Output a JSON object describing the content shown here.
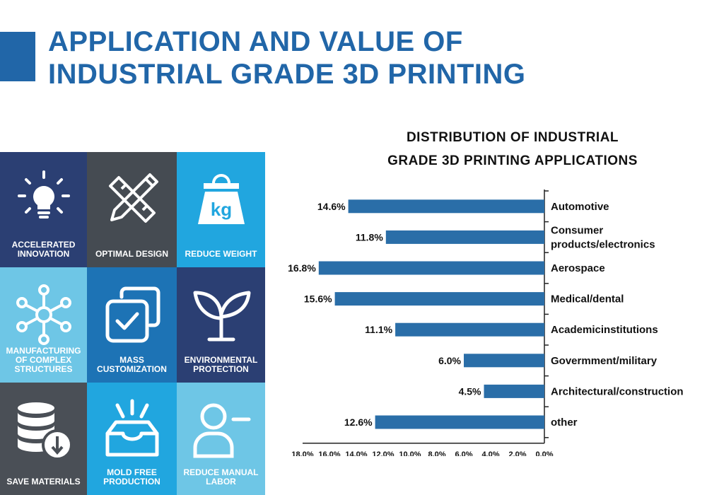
{
  "header": {
    "title_line1": "APPLICATION AND VALUE OF",
    "title_line2": "INDUSTRIAL GRADE 3D PRINTING"
  },
  "tiles": [
    {
      "label": "ACCELERATED INNOVATION",
      "icon": "lightbulb-icon",
      "bg": "#2b3f73"
    },
    {
      "label": "OPTIMAL DESIGN",
      "icon": "pencil-ruler-icon",
      "bg": "#454b52"
    },
    {
      "label": "REDUCE WEIGHT",
      "icon": "weight-kg-icon",
      "bg": "#21a6df"
    },
    {
      "label": "MANUFACTURING OF COMPLEX STRUCTURES",
      "icon": "network-nodes-icon",
      "bg": "#6ec6e6"
    },
    {
      "label": "MASS CUSTOMIZATION",
      "icon": "stacked-checkbox-icon",
      "bg": "#1d73b5"
    },
    {
      "label": "ENVIRONMENTAL PROTECTION",
      "icon": "sprout-icon",
      "bg": "#2b3f73"
    },
    {
      "label": "SAVE MATERIALS",
      "icon": "database-download-icon",
      "bg": "#4a4f56"
    },
    {
      "label": "MOLD FREE PRODUCTION",
      "icon": "inbox-tray-icon",
      "bg": "#21a6df"
    },
    {
      "label": "REDUCE MANUAL LABOR",
      "icon": "person-minus-icon",
      "bg": "#6ec6e6"
    }
  ],
  "chart_data": {
    "type": "bar",
    "orientation": "horizontal",
    "title_line1": "DISTRIBUTION OF INDUSTRIAL",
    "title_line2": "GRADE 3D PRINTING APPLICATIONS",
    "categories": [
      "Automotive",
      "Consumer products/electronics",
      "Aerospace",
      "Medical/dental",
      "Academicinstitutions",
      "Govermment/military",
      "Architectural/construction",
      "other"
    ],
    "category_lines": [
      [
        "Automotive"
      ],
      [
        "Consumer",
        "products/electronics"
      ],
      [
        "Aerospace"
      ],
      [
        "Medical/dental"
      ],
      [
        "Academicinstitutions"
      ],
      [
        "Govermment/military"
      ],
      [
        "Architectural/construction"
      ],
      [
        "other"
      ]
    ],
    "values": [
      14.6,
      11.8,
      16.8,
      15.6,
      11.1,
      6.0,
      4.5,
      12.6
    ],
    "value_labels": [
      "14.6%",
      "11.8%",
      "16.8%",
      "15.6%",
      "11.1%",
      "6.0%",
      "4.5%",
      "12.6%"
    ],
    "x_ticks": [
      "18.0%",
      "16.0%",
      "14.0%",
      "12.0%",
      "10.0%",
      "8.0%",
      "6.0%",
      "4.0%",
      "2.0%",
      "0.0%"
    ],
    "xlim": [
      0,
      18
    ],
    "x_reversed": true,
    "bar_color": "#2a6ea8",
    "grid": false
  }
}
